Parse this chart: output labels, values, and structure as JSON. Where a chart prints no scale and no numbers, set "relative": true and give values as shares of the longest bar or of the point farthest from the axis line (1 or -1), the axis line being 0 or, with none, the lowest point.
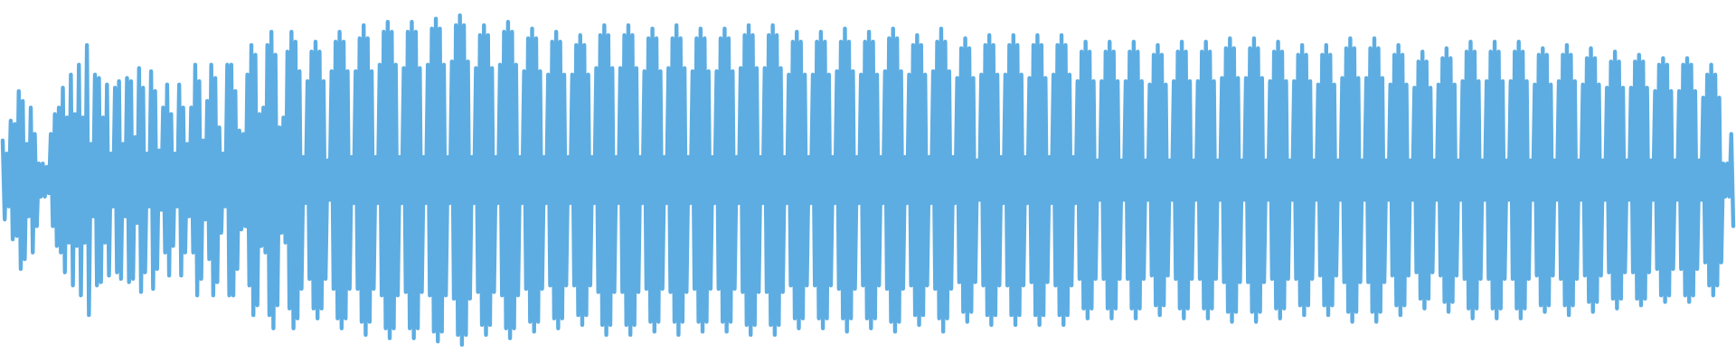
{
  "chart_data": {
    "type": "line",
    "relative": true,
    "color": "#5dade2",
    "marker": "none",
    "categories": [
      null,
      null,
      null,
      null,
      null,
      null,
      null,
      null,
      null,
      null,
      null,
      null,
      null,
      null,
      null,
      null,
      null,
      null,
      null,
      null,
      null,
      null,
      null,
      null,
      null,
      null,
      null,
      null,
      null,
      null,
      null,
      null,
      null,
      null,
      null,
      null,
      null,
      null,
      null,
      null,
      null,
      null,
      null,
      null,
      null,
      null,
      null,
      null,
      null,
      null,
      null,
      null,
      null,
      null,
      null,
      null,
      null,
      null,
      null,
      null,
      null,
      null,
      null,
      null,
      null,
      null,
      null,
      null,
      null,
      null,
      null,
      null,
      null,
      null,
      null,
      null,
      null,
      null,
      null,
      null,
      null,
      null,
      null,
      null,
      null,
      null,
      null,
      null,
      null,
      null,
      null,
      null,
      null,
      null,
      null,
      null,
      null,
      null,
      null,
      null,
      null,
      null,
      null,
      null,
      null,
      null,
      null,
      null,
      null,
      null,
      null,
      null,
      null,
      null,
      null,
      null,
      null,
      null,
      null,
      null,
      null,
      null,
      null,
      null,
      null,
      null,
      null,
      null,
      null,
      null,
      null,
      null,
      null,
      null,
      null,
      null,
      null,
      null,
      null,
      null,
      null,
      null,
      null,
      null,
      null,
      null,
      null,
      null,
      null,
      null,
      null,
      null,
      null,
      null,
      null,
      null,
      null,
      null,
      null,
      null,
      null,
      null,
      null,
      null,
      null,
      null,
      null,
      null,
      null,
      null,
      null,
      null,
      null,
      null,
      null,
      null,
      null,
      null,
      null,
      null,
      null,
      null,
      null,
      null,
      null,
      null,
      null,
      null,
      null,
      null,
      null,
      null,
      null,
      null,
      null,
      null,
      null,
      null,
      null,
      null,
      null,
      null,
      null,
      null,
      null,
      null,
      null,
      null,
      null,
      null,
      null,
      null,
      null,
      null,
      null,
      null,
      null,
      null,
      null,
      null,
      null,
      null,
      null,
      null,
      null,
      null,
      null,
      null,
      null,
      null,
      null,
      null,
      null,
      null,
      null,
      null,
      null,
      null,
      null,
      null,
      null,
      null,
      null,
      null,
      null,
      null,
      null,
      null,
      null,
      null,
      null,
      null,
      null,
      null,
      null,
      null,
      null,
      null,
      null,
      null,
      null,
      null,
      null,
      null,
      null,
      null,
      null,
      null,
      null,
      null,
      null,
      null,
      null,
      null,
      null,
      null,
      null,
      null,
      null,
      null,
      null,
      null,
      null,
      null,
      null,
      null,
      null,
      null,
      null,
      null,
      null,
      null,
      null,
      null,
      null,
      null,
      null,
      null,
      null,
      null,
      null,
      null,
      null,
      null,
      null,
      null,
      null,
      null,
      null,
      null,
      null,
      null,
      null,
      null,
      null,
      null,
      null,
      null,
      null,
      null,
      null,
      null,
      null,
      null,
      null,
      null,
      null,
      null,
      null,
      null,
      null,
      null,
      null,
      null,
      null,
      null,
      null,
      null,
      null,
      null,
      null,
      null,
      null,
      null,
      null,
      null,
      null,
      null,
      null,
      null,
      null,
      null,
      null,
      null,
      null,
      null,
      null,
      null,
      null,
      null,
      null,
      null,
      null,
      null,
      null,
      null,
      null,
      null,
      null,
      null,
      null,
      null,
      null,
      null,
      null,
      null,
      null,
      null,
      null,
      null,
      null,
      null,
      null,
      null,
      null,
      null,
      null,
      null,
      null,
      null,
      null,
      null,
      null,
      null,
      null,
      null,
      null,
      null,
      null,
      null,
      null,
      null,
      null,
      null,
      null,
      null,
      null,
      null,
      null,
      null,
      null,
      null,
      null,
      null,
      null,
      null,
      null,
      null,
      null,
      null,
      null,
      null,
      null,
      null,
      null,
      null,
      null,
      null,
      null,
      null,
      null,
      null,
      null,
      null,
      null,
      null,
      null,
      null,
      null,
      null,
      null,
      null,
      null,
      null,
      null,
      null,
      null,
      null,
      null,
      null,
      null,
      null,
      null,
      null,
      null,
      null,
      null,
      null,
      null,
      null,
      null,
      null,
      null,
      null,
      null,
      null,
      null,
      null,
      null,
      null,
      null,
      null,
      null,
      null,
      null,
      null,
      null,
      null,
      null,
      null,
      null,
      null,
      null,
      null,
      null,
      null,
      null,
      null,
      null,
      null,
      null,
      null,
      null,
      null,
      null,
      null,
      null,
      null,
      null,
      null,
      null,
      null,
      null,
      null,
      null,
      null,
      null,
      null,
      null,
      null,
      null,
      null,
      null,
      null,
      null,
      null,
      null,
      null,
      null,
      null,
      null,
      null,
      null,
      null,
      null,
      null,
      null,
      null,
      null,
      null,
      null,
      null,
      null,
      null,
      null,
      null,
      null,
      null,
      null,
      null,
      null,
      null,
      null,
      null,
      null,
      null,
      null,
      null,
      null,
      null,
      null,
      null,
      null,
      null,
      null,
      null,
      null,
      null,
      null,
      null,
      null,
      null,
      null,
      null,
      null,
      null,
      null,
      null,
      null,
      null,
      null,
      null,
      null,
      null,
      null,
      null,
      null,
      null,
      null,
      null,
      null,
      null,
      null,
      null,
      null,
      null,
      null,
      null,
      null,
      null,
      null,
      null,
      null,
      null,
      null,
      null,
      null,
      null,
      null,
      null,
      null,
      null,
      null,
      null,
      null,
      null,
      null,
      null,
      null,
      null,
      null,
      null,
      null,
      null,
      null,
      null,
      null,
      null,
      null,
      null,
      null,
      null,
      null,
      null,
      null,
      null,
      null,
      null,
      null,
      null,
      null,
      null,
      null,
      null,
      null,
      null,
      null,
      null,
      null,
      null,
      null,
      null,
      null,
      null,
      null,
      null,
      null,
      null,
      null,
      null,
      null,
      null,
      null,
      null,
      null,
      null,
      null,
      null,
      null,
      null,
      null,
      null,
      null,
      null,
      null,
      null,
      null,
      null,
      null,
      null,
      null,
      null,
      null,
      null,
      null,
      null,
      null,
      null,
      null,
      null,
      null,
      null,
      null,
      null,
      null,
      null,
      null,
      null,
      null,
      null,
      null,
      null,
      null,
      null,
      null,
      null,
      null,
      null,
      null,
      null,
      null,
      null,
      null,
      null,
      null,
      null,
      null,
      null,
      null,
      null,
      null,
      null,
      null,
      null,
      null,
      null,
      null,
      null,
      null,
      null,
      null,
      null,
      null,
      null,
      null,
      null,
      null,
      null,
      null,
      null,
      null,
      null,
      null,
      null,
      null,
      null,
      null,
      null,
      null,
      null,
      null,
      null,
      null,
      null,
      null,
      null,
      null,
      null,
      null,
      null,
      null,
      null,
      null,
      null,
      null,
      null,
      null,
      null,
      null,
      null,
      null,
      null,
      null,
      null,
      null,
      null,
      null,
      null,
      null,
      null,
      null,
      null,
      null,
      null,
      null,
      null,
      null,
      null,
      null,
      null,
      null,
      null,
      null,
      null,
      null,
      null,
      null,
      null,
      null,
      null,
      null,
      null,
      null,
      null,
      null,
      null,
      null,
      null,
      null,
      null,
      null,
      null,
      null,
      null,
      null,
      null,
      null,
      null,
      null,
      null,
      null,
      null,
      null,
      null,
      null,
      null,
      null,
      null,
      null,
      null,
      null,
      null,
      null,
      null,
      null,
      null,
      null,
      null,
      null,
      null,
      null,
      null,
      null,
      null,
      null,
      null,
      null,
      null,
      null,
      null,
      null,
      null,
      null,
      null,
      null,
      null,
      null,
      null,
      null,
      null,
      null,
      null,
      null,
      null,
      null,
      null,
      null,
      null,
      null,
      null,
      null,
      null,
      null,
      null
    ],
    "values": [
      0.62,
      0.38,
      0.58,
      0.42,
      0.68,
      0.32,
      0.67,
      0.33,
      0.77,
      0.23,
      0.74,
      0.26,
      0.61,
      0.39,
      0.72,
      0.28,
      0.64,
      0.36,
      0.55,
      0.45,
      0.55,
      0.45,
      0.54,
      0.46,
      0.64,
      0.36,
      0.7,
      0.3,
      0.72,
      0.28,
      0.78,
      0.22,
      0.69,
      0.31,
      0.82,
      0.18,
      0.7,
      0.3,
      0.85,
      0.15,
      0.69,
      0.31,
      0.91,
      0.09,
      0.61,
      0.39,
      0.82,
      0.18,
      0.81,
      0.19,
      0.69,
      0.31,
      0.79,
      0.21,
      0.58,
      0.42,
      0.78,
      0.22,
      0.8,
      0.2,
      0.61,
      0.39,
      0.81,
      0.19,
      0.8,
      0.2,
      0.63,
      0.37,
      0.84,
      0.16,
      0.78,
      0.22,
      0.58,
      0.42,
      0.83,
      0.17,
      0.77,
      0.23,
      0.59,
      0.41,
      0.72,
      0.28,
      0.79,
      0.21,
      0.7,
      0.3,
      0.58,
      0.42,
      0.79,
      0.21,
      0.72,
      0.28,
      0.61,
      0.39,
      0.72,
      0.28,
      0.85,
      0.15,
      0.8,
      0.2,
      0.62,
      0.38,
      0.74,
      0.26,
      0.85,
      0.15,
      0.81,
      0.19,
      0.66,
      0.34,
      0.58,
      0.42,
      0.85,
      0.15,
      0.85,
      0.15,
      0.77,
      0.23,
      0.65,
      0.35,
      0.64,
      0.36,
      0.82,
      0.18,
      0.91,
      0.09,
      0.88,
      0.12,
      0.7,
      0.3,
      0.72,
      0.28,
      0.91,
      0.09,
      0.95,
      0.05,
      0.88,
      0.12,
      0.66,
      0.34,
      0.69,
      0.31,
      0.89,
      0.11,
      0.95,
      0.05,
      0.92,
      0.08,
      0.83,
      0.17,
      0.57,
      0.43,
      0.8,
      0.2,
      0.89,
      0.11,
      0.92,
      0.08,
      0.89,
      0.11,
      0.8,
      0.2,
      0.56,
      0.44,
      0.83,
      0.17,
      0.92,
      0.08,
      0.95,
      0.05,
      0.92,
      0.08,
      0.83,
      0.17,
      0.57,
      0.43,
      0.83,
      0.17,
      0.93,
      0.07,
      0.97,
      0.03,
      0.93,
      0.07,
      0.83,
      0.17,
      0.57,
      0.43,
      0.85,
      0.15,
      0.95,
      0.05,
      0.98,
      0.02,
      0.95,
      0.05,
      0.85,
      0.15,
      0.57,
      0.43,
      0.84,
      0.16,
      0.95,
      0.05,
      0.98,
      0.02,
      0.95,
      0.05,
      0.84,
      0.16,
      0.57,
      0.43,
      0.85,
      0.15,
      0.96,
      0.04,
      0.99,
      0.01,
      0.96,
      0.04,
      0.85,
      0.15,
      0.57,
      0.43,
      0.86,
      0.14,
      0.97,
      0.03,
      1,
      0,
      0.97,
      0.03,
      0.86,
      0.14,
      0.57,
      0.43,
      0.84,
      0.16,
      0.94,
      0.06,
      0.97,
      0.03,
      0.94,
      0.06,
      0.84,
      0.16,
      0.57,
      0.43,
      0.85,
      0.15,
      0.95,
      0.05,
      0.98,
      0.02,
      0.95,
      0.05,
      0.85,
      0.15,
      0.57,
      0.43,
      0.83,
      0.17,
      0.93,
      0.07,
      0.96,
      0.04,
      0.93,
      0.07,
      0.83,
      0.17,
      0.57,
      0.43,
      0.82,
      0.18,
      0.92,
      0.08,
      0.95,
      0.05,
      0.92,
      0.08,
      0.82,
      0.18,
      0.57,
      0.43,
      0.82,
      0.18,
      0.91,
      0.09,
      0.94,
      0.06,
      0.91,
      0.09,
      0.82,
      0.18,
      0.57,
      0.43,
      0.84,
      0.16,
      0.94,
      0.06,
      0.97,
      0.03,
      0.94,
      0.06,
      0.84,
      0.16,
      0.57,
      0.43,
      0.84,
      0.16,
      0.94,
      0.06,
      0.97,
      0.03,
      0.94,
      0.06,
      0.84,
      0.16,
      0.57,
      0.43,
      0.83,
      0.17,
      0.93,
      0.07,
      0.96,
      0.04,
      0.93,
      0.07,
      0.83,
      0.17,
      0.57,
      0.43,
      0.84,
      0.16,
      0.93,
      0.07,
      0.97,
      0.03,
      0.93,
      0.07,
      0.84,
      0.16,
      0.57,
      0.43,
      0.83,
      0.17,
      0.93,
      0.07,
      0.96,
      0.04,
      0.93,
      0.07,
      0.83,
      0.17,
      0.57,
      0.43,
      0.83,
      0.17,
      0.93,
      0.07,
      0.96,
      0.04,
      0.93,
      0.07,
      0.83,
      0.17,
      0.57,
      0.43,
      0.84,
      0.16,
      0.94,
      0.06,
      0.97,
      0.03,
      0.94,
      0.06,
      0.84,
      0.16,
      0.57,
      0.43,
      0.84,
      0.16,
      0.94,
      0.06,
      0.97,
      0.03,
      0.94,
      0.06,
      0.84,
      0.16,
      0.57,
      0.43,
      0.82,
      0.18,
      0.92,
      0.08,
      0.95,
      0.05,
      0.92,
      0.08,
      0.82,
      0.18,
      0.57,
      0.43,
      0.82,
      0.18,
      0.92,
      0.08,
      0.95,
      0.05,
      0.92,
      0.08,
      0.82,
      0.18,
      0.57,
      0.43,
      0.83,
      0.17,
      0.92,
      0.08,
      0.96,
      0.04,
      0.92,
      0.08,
      0.83,
      0.17,
      0.57,
      0.43,
      0.82,
      0.18,
      0.92,
      0.08,
      0.95,
      0.05,
      0.92,
      0.08,
      0.82,
      0.18,
      0.57,
      0.43,
      0.83,
      0.17,
      0.93,
      0.07,
      0.96,
      0.04,
      0.93,
      0.07,
      0.83,
      0.17,
      0.57,
      0.43,
      0.82,
      0.18,
      0.91,
      0.09,
      0.94,
      0.06,
      0.91,
      0.09,
      0.82,
      0.18,
      0.57,
      0.43,
      0.83,
      0.17,
      0.92,
      0.08,
      0.96,
      0.04,
      0.92,
      0.08,
      0.83,
      0.17,
      0.57,
      0.43,
      0.81,
      0.19,
      0.9,
      0.1,
      0.93,
      0.07,
      0.9,
      0.1,
      0.81,
      0.19,
      0.56,
      0.44,
      0.82,
      0.18,
      0.91,
      0.09,
      0.94,
      0.06,
      0.91,
      0.09,
      0.82,
      0.18,
      0.57,
      0.43,
      0.82,
      0.18,
      0.91,
      0.09,
      0.94,
      0.06,
      0.91,
      0.09,
      0.82,
      0.18,
      0.57,
      0.43,
      0.81,
      0.19,
      0.91,
      0.09,
      0.94,
      0.06,
      0.91,
      0.09,
      0.81,
      0.19,
      0.57,
      0.43,
      0.82,
      0.18,
      0.91,
      0.09,
      0.94,
      0.06,
      0.91,
      0.09,
      0.82,
      0.18,
      0.57,
      0.43,
      0.8,
      0.2,
      0.89,
      0.11,
      0.92,
      0.08,
      0.89,
      0.11,
      0.8,
      0.2,
      0.56,
      0.44,
      0.8,
      0.2,
      0.89,
      0.11,
      0.92,
      0.08,
      0.89,
      0.11,
      0.8,
      0.2,
      0.56,
      0.44,
      0.8,
      0.2,
      0.89,
      0.11,
      0.92,
      0.08,
      0.89,
      0.11,
      0.8,
      0.2,
      0.56,
      0.44,
      0.79,
      0.21,
      0.88,
      0.12,
      0.91,
      0.09,
      0.88,
      0.12,
      0.79,
      0.21,
      0.56,
      0.44,
      0.8,
      0.2,
      0.89,
      0.11,
      0.92,
      0.08,
      0.89,
      0.11,
      0.8,
      0.2,
      0.56,
      0.44,
      0.8,
      0.2,
      0.89,
      0.11,
      0.92,
      0.08,
      0.89,
      0.11,
      0.8,
      0.2,
      0.56,
      0.44,
      0.81,
      0.19,
      0.9,
      0.1,
      0.93,
      0.07,
      0.9,
      0.1,
      0.81,
      0.19,
      0.56,
      0.44,
      0.81,
      0.19,
      0.9,
      0.1,
      0.93,
      0.07,
      0.9,
      0.1,
      0.81,
      0.19,
      0.56,
      0.44,
      0.8,
      0.2,
      0.89,
      0.11,
      0.92,
      0.08,
      0.89,
      0.11,
      0.8,
      0.2,
      0.56,
      0.44,
      0.8,
      0.2,
      0.88,
      0.12,
      0.91,
      0.09,
      0.88,
      0.12,
      0.8,
      0.2,
      0.56,
      0.44,
      0.79,
      0.21,
      0.88,
      0.12,
      0.91,
      0.09,
      0.88,
      0.12,
      0.79,
      0.21,
      0.56,
      0.44,
      0.81,
      0.19,
      0.9,
      0.1,
      0.93,
      0.07,
      0.9,
      0.1,
      0.81,
      0.19,
      0.56,
      0.44,
      0.81,
      0.19,
      0.9,
      0.1,
      0.93,
      0.07,
      0.9,
      0.1,
      0.81,
      0.19,
      0.56,
      0.44,
      0.79,
      0.21,
      0.88,
      0.12,
      0.91,
      0.09,
      0.88,
      0.12,
      0.79,
      0.21,
      0.56,
      0.44,
      0.78,
      0.22,
      0.86,
      0.14,
      0.89,
      0.11,
      0.86,
      0.14,
      0.78,
      0.22,
      0.56,
      0.44,
      0.79,
      0.21,
      0.87,
      0.13,
      0.9,
      0.1,
      0.87,
      0.13,
      0.79,
      0.21,
      0.56,
      0.44,
      0.8,
      0.2,
      0.89,
      0.11,
      0.92,
      0.08,
      0.89,
      0.11,
      0.8,
      0.2,
      0.56,
      0.44,
      0.8,
      0.2,
      0.89,
      0.11,
      0.92,
      0.08,
      0.89,
      0.11,
      0.8,
      0.2,
      0.56,
      0.44,
      0.8,
      0.2,
      0.89,
      0.11,
      0.92,
      0.08,
      0.89,
      0.11,
      0.8,
      0.2,
      0.56,
      0.44,
      0.79,
      0.21,
      0.88,
      0.12,
      0.9,
      0.1,
      0.88,
      0.12,
      0.79,
      0.21,
      0.56,
      0.44,
      0.8,
      0.2,
      0.88,
      0.12,
      0.91,
      0.09,
      0.88,
      0.12,
      0.8,
      0.2,
      0.56,
      0.44,
      0.79,
      0.21,
      0.87,
      0.13,
      0.9,
      0.1,
      0.87,
      0.13,
      0.79,
      0.21,
      0.56,
      0.44,
      0.78,
      0.22,
      0.86,
      0.14,
      0.89,
      0.11,
      0.86,
      0.14,
      0.78,
      0.22,
      0.56,
      0.44,
      0.78,
      0.22,
      0.86,
      0.14,
      0.88,
      0.12,
      0.86,
      0.14,
      0.78,
      0.22,
      0.56,
      0.44,
      0.77,
      0.23,
      0.85,
      0.15,
      0.87,
      0.13,
      0.85,
      0.15,
      0.77,
      0.23,
      0.56,
      0.44,
      0.77,
      0.23,
      0.85,
      0.15,
      0.87,
      0.13,
      0.85,
      0.15,
      0.77,
      0.23,
      0.56,
      0.44,
      0.75,
      0.25,
      0.82,
      0.18,
      0.85,
      0.15,
      0.82,
      0.18,
      0.75,
      0.25,
      0.55,
      0.45,
      0.55,
      0.45,
      0.64,
      0.36
    ]
  }
}
